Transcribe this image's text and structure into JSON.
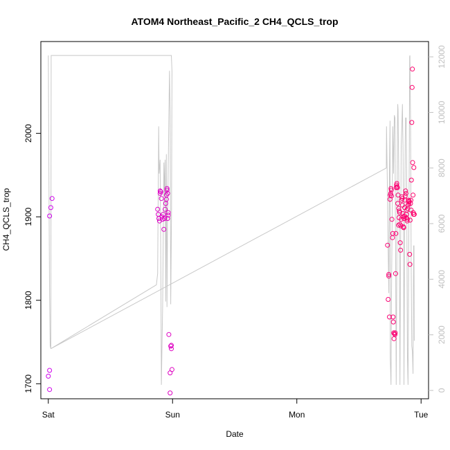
{
  "chart_data": {
    "type": "scatter",
    "title": "ATOM4 Northeast_Pacific_2 CH4_QCLS_trop",
    "xlabel": "Date",
    "ylabel": "CH4_QCLS_trop",
    "x_ticks": [
      {
        "label": "Sat",
        "day": 0
      },
      {
        "label": "Sun",
        "day": 1
      },
      {
        "label": "Mon",
        "day": 2
      },
      {
        "label": "Tue",
        "day": 3
      }
    ],
    "xlim_days": [
      -0.06,
      3.06
    ],
    "ylim": [
      1682,
      2110
    ],
    "y_ticks": [
      1700,
      1800,
      1900,
      2000
    ],
    "y2lim": [
      -300,
      12550
    ],
    "y2_ticks": [
      0,
      2000,
      4000,
      6000,
      8000,
      10000,
      12000
    ],
    "series": [
      {
        "kind": "points",
        "axis": "left",
        "color_start": "#cc00ee",
        "color_end": "#ff0066",
        "points": [
          [
            0.01,
            1901
          ],
          [
            0.02,
            1911
          ],
          [
            0.03,
            1922
          ],
          [
            0.01,
            1716
          ],
          [
            0.0,
            1709
          ],
          [
            0.01,
            1693
          ],
          [
            0.88,
            1909
          ],
          [
            0.885,
            1903
          ],
          [
            0.89,
            1898
          ],
          [
            0.895,
            1895
          ],
          [
            0.9,
            1928
          ],
          [
            0.9,
            1931
          ],
          [
            0.905,
            1930
          ],
          [
            0.91,
            1922
          ],
          [
            0.915,
            1900
          ],
          [
            0.92,
            1897
          ],
          [
            0.925,
            1903
          ],
          [
            0.93,
            1885
          ],
          [
            0.935,
            1898
          ],
          [
            0.94,
            1909
          ],
          [
            0.945,
            1916
          ],
          [
            0.95,
            1921
          ],
          [
            0.95,
            1926
          ],
          [
            0.955,
            1932
          ],
          [
            0.955,
            1934
          ],
          [
            0.96,
            1928
          ],
          [
            0.96,
            1898
          ],
          [
            0.965,
            1902
          ],
          [
            0.965,
            1905
          ],
          [
            0.97,
            1759
          ],
          [
            0.98,
            1713
          ],
          [
            0.985,
            1745
          ],
          [
            0.99,
            1742
          ],
          [
            0.99,
            1746
          ],
          [
            0.995,
            1717
          ],
          [
            0.98,
            1689
          ],
          [
            2.73,
            1866
          ],
          [
            2.735,
            1801
          ],
          [
            2.74,
            1831
          ],
          [
            2.74,
            1829
          ],
          [
            2.745,
            1780
          ],
          [
            2.75,
            1921
          ],
          [
            2.752,
            1926
          ],
          [
            2.755,
            1928
          ],
          [
            2.758,
            1934
          ],
          [
            2.76,
            1932
          ],
          [
            2.762,
            1925
          ],
          [
            2.765,
            1897
          ],
          [
            2.77,
            1875
          ],
          [
            2.772,
            1880
          ],
          [
            2.775,
            1780
          ],
          [
            2.777,
            1774
          ],
          [
            2.78,
            1761
          ],
          [
            2.782,
            1754
          ],
          [
            2.785,
            1760
          ],
          [
            2.79,
            1759
          ],
          [
            2.792,
            1761
          ],
          [
            2.795,
            1832
          ],
          [
            2.797,
            1880
          ],
          [
            2.8,
            1935
          ],
          [
            2.802,
            1938
          ],
          [
            2.805,
            1940
          ],
          [
            2.807,
            1936
          ],
          [
            2.81,
            1935
          ],
          [
            2.812,
            1916
          ],
          [
            2.815,
            1926
          ],
          [
            2.818,
            1890
          ],
          [
            2.82,
            1910
          ],
          [
            2.822,
            1899
          ],
          [
            2.825,
            1907
          ],
          [
            2.828,
            1905
          ],
          [
            2.83,
            1891
          ],
          [
            2.832,
            1869
          ],
          [
            2.835,
            1860
          ],
          [
            2.838,
            1889
          ],
          [
            2.84,
            1897
          ],
          [
            2.842,
            1920
          ],
          [
            2.845,
            1924
          ],
          [
            2.848,
            1922
          ],
          [
            2.85,
            1914
          ],
          [
            2.852,
            1904
          ],
          [
            2.855,
            1900
          ],
          [
            2.858,
            1888
          ],
          [
            2.86,
            1887
          ],
          [
            2.862,
            1898
          ],
          [
            2.865,
            1901
          ],
          [
            2.868,
            1911
          ],
          [
            2.87,
            1920
          ],
          [
            2.872,
            1925
          ],
          [
            2.875,
            1931
          ],
          [
            2.878,
            1928
          ],
          [
            2.88,
            1899
          ],
          [
            2.882,
            1903
          ],
          [
            2.885,
            1908
          ],
          [
            2.888,
            1895
          ],
          [
            2.89,
            1897
          ],
          [
            2.892,
            1910
          ],
          [
            2.895,
            1914
          ],
          [
            2.898,
            1920
          ],
          [
            2.9,
            1918
          ],
          [
            2.902,
            1916
          ],
          [
            2.905,
            1919
          ],
          [
            2.908,
            1855
          ],
          [
            2.91,
            1843
          ],
          [
            2.912,
            1896
          ],
          [
            2.915,
            1916
          ],
          [
            2.918,
            1920
          ],
          [
            2.92,
            1908
          ],
          [
            2.922,
            1944
          ],
          [
            2.925,
            2013
          ],
          [
            2.928,
            2055
          ],
          [
            2.93,
            2077
          ],
          [
            2.932,
            1965
          ],
          [
            2.935,
            1926
          ],
          [
            2.937,
            1905
          ],
          [
            2.94,
            1903
          ],
          [
            2.942,
            1959
          ],
          [
            2.945,
            1903
          ]
        ]
      },
      {
        "kind": "line",
        "axis": "right",
        "color": "#c8c8c8",
        "points": [
          [
            0.0,
            12050
          ],
          [
            0.005,
            7600
          ],
          [
            0.01,
            3400
          ],
          [
            0.015,
            1600
          ],
          [
            0.02,
            1500
          ],
          [
            0.023,
            12050
          ],
          [
            0.97,
            12050
          ],
          [
            0.99,
            12050
          ],
          [
            0.995,
            11500
          ],
          [
            0.992,
            6500
          ],
          [
            0.985,
            3100
          ],
          [
            0.98,
            10000
          ],
          [
            0.975,
            11500
          ],
          [
            0.97,
            9800
          ],
          [
            0.96,
            6200
          ],
          [
            0.955,
            3000
          ],
          [
            0.95,
            8500
          ],
          [
            0.945,
            3200
          ],
          [
            0.94,
            8300
          ],
          [
            0.935,
            7000
          ],
          [
            0.93,
            8200
          ],
          [
            0.92,
            3000
          ],
          [
            0.91,
            200
          ],
          [
            0.905,
            5000
          ],
          [
            0.9,
            8300
          ],
          [
            0.892,
            7800
          ],
          [
            0.888,
            9500
          ],
          [
            0.88,
            4200
          ],
          [
            0.87,
            3800
          ],
          [
            0.02,
            1500
          ],
          [
            2.72,
            8000
          ],
          [
            2.722,
            9500
          ],
          [
            2.728,
            7600
          ],
          [
            2.735,
            5000
          ],
          [
            2.74,
            3500
          ],
          [
            2.745,
            7800
          ],
          [
            2.75,
            9700
          ],
          [
            2.752,
            1200
          ],
          [
            2.758,
            200
          ],
          [
            2.762,
            3500
          ],
          [
            2.768,
            6800
          ],
          [
            2.772,
            9500
          ],
          [
            2.775,
            8800
          ],
          [
            2.778,
            7800
          ],
          [
            2.782,
            9200
          ],
          [
            2.785,
            9900
          ],
          [
            2.79,
            9800
          ],
          [
            2.792,
            7200
          ],
          [
            2.795,
            5200
          ],
          [
            2.8,
            200
          ],
          [
            2.805,
            4500
          ],
          [
            2.81,
            9500
          ],
          [
            2.812,
            10300
          ],
          [
            2.815,
            10100
          ],
          [
            2.82,
            8000
          ],
          [
            2.825,
            5200
          ],
          [
            2.83,
            200
          ],
          [
            2.835,
            5000
          ],
          [
            2.84,
            8800
          ],
          [
            2.845,
            9500
          ],
          [
            2.85,
            10300
          ],
          [
            2.855,
            8500
          ],
          [
            2.86,
            4500
          ],
          [
            2.862,
            200
          ],
          [
            2.868,
            5600
          ],
          [
            2.872,
            8900
          ],
          [
            2.875,
            9800
          ],
          [
            2.88,
            9800
          ],
          [
            2.885,
            7200
          ],
          [
            2.888,
            3500
          ],
          [
            2.89,
            1200
          ],
          [
            2.895,
            200
          ],
          [
            2.9,
            4600
          ],
          [
            2.905,
            8600
          ],
          [
            2.908,
            12000
          ],
          [
            2.91,
            12050
          ],
          [
            2.915,
            9800
          ],
          [
            2.92,
            4600
          ],
          [
            2.925,
            1600
          ],
          [
            2.93,
            1400
          ],
          [
            2.935,
            600
          ],
          [
            2.938,
            3500
          ],
          [
            2.94,
            5200
          ],
          [
            2.943,
            5200
          ],
          [
            2.945,
            1800
          ],
          [
            2.948,
            1800
          ]
        ]
      }
    ]
  }
}
